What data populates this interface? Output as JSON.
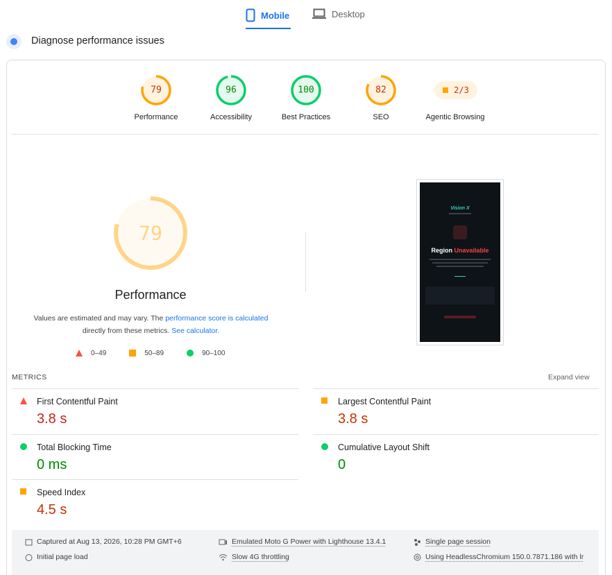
{
  "tabs": [
    "Mobile",
    "Desktop"
  ],
  "section_title": "Diagnose performance issues",
  "scores": [
    {
      "score": 79,
      "label": "Performance",
      "color": "#ffa400",
      "text_color": "#c33300",
      "bg": "#fff3e0"
    },
    {
      "score": 96,
      "label": "Accessibility",
      "color": "#0cce6b",
      "text_color": "#008800",
      "bg": "#e5f9ee"
    },
    {
      "score": 100,
      "label": "Best Practices",
      "color": "#0cce6b",
      "text_color": "#008800",
      "bg": "#e5f9ee"
    },
    {
      "score": 82,
      "label": "SEO",
      "color": "#ffa400",
      "text_color": "#c33300",
      "bg": "#fff3e0"
    }
  ],
  "agentic": {
    "value": "2/3",
    "label": "Agentic Browsing"
  },
  "summary": {
    "score": 79,
    "title": "Performance",
    "text_1": "Values are estimated and may vary. The ",
    "link_1": "performance score is calculated",
    "text_2": "directly from these metrics. ",
    "link_2": "See calculator."
  },
  "legend": [
    "0–49",
    "50–89",
    "90–100"
  ],
  "preview": {
    "brand": "Vision X",
    "heading_1": "Region",
    "heading_2": "Unavailable"
  },
  "metrics_header": "METRICS",
  "expand": "Expand view",
  "metrics": [
    {
      "name": "First Contentful Paint",
      "value": "3.8 s",
      "icon": "triangle",
      "color": "#ff4e42",
      "text_color": "#c5221f"
    },
    {
      "name": "Largest Contentful Paint",
      "value": "3.8 s",
      "icon": "square",
      "color": "#ffa400",
      "text_color": "#c33300"
    },
    {
      "name": "Total Blocking Time",
      "value": "0 ms",
      "icon": "circle",
      "color": "#0cce6b",
      "text_color": "#008800"
    },
    {
      "name": "Cumulative Layout Shift",
      "value": "0",
      "icon": "circle",
      "color": "#0cce6b",
      "text_color": "#008800"
    },
    {
      "name": "Speed Index",
      "value": "4.5 s",
      "icon": "square",
      "color": "#ffa400",
      "text_color": "#c33300"
    }
  ],
  "footer": [
    "Captured at Aug 13, 2026, 10:28 PM GMT+6",
    "Initial page load",
    "Emulated Moto G Power with Lighthouse 13.4.1",
    "Slow 4G throttling",
    "Single page session",
    "Using HeadlessChromium 150.0.7871.186 with lr"
  ]
}
